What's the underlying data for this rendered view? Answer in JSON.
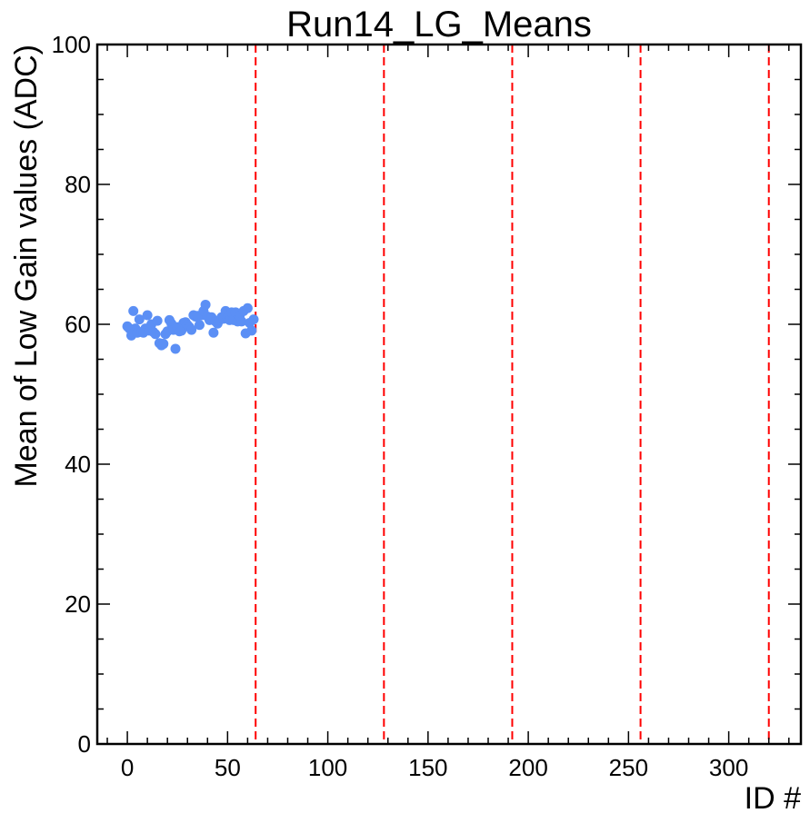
{
  "chart_data": {
    "type": "scatter",
    "title": "Run14_LG_Means",
    "xlabel": "ID #",
    "ylabel": "Mean of Low Gain values (ADC)",
    "xlim": [
      -15,
      336
    ],
    "ylim": [
      0,
      100
    ],
    "xticks": [
      0,
      50,
      100,
      150,
      200,
      250,
      300
    ],
    "yticks": [
      0,
      20,
      40,
      60,
      80,
      100
    ],
    "grid": false,
    "colors": {
      "points": "#5b8ff5",
      "vlines": "#ff0000",
      "axes": "#000000"
    },
    "vlines": [
      64,
      128,
      192,
      256,
      320
    ],
    "series": [
      {
        "x": [
          0,
          1,
          2,
          3,
          4,
          5,
          6,
          7,
          8,
          9,
          10,
          11,
          12,
          13,
          14,
          15,
          16,
          17,
          18,
          19,
          20,
          21,
          22,
          23,
          24,
          25,
          26,
          27,
          28,
          29,
          30,
          31,
          32,
          33,
          34,
          35,
          36,
          37,
          38,
          39,
          40,
          41,
          42,
          43,
          44,
          45,
          46,
          47,
          48,
          49,
          50,
          51,
          52,
          53,
          54,
          55,
          56,
          57,
          58,
          59,
          60,
          61,
          62,
          63
        ],
        "y": [
          59.7,
          59.4,
          58.4,
          61.9,
          59.4,
          58.8,
          60.7,
          58.9,
          58.8,
          59.4,
          61.3,
          59.1,
          60.0,
          58.9,
          58.6,
          60.5,
          57.3,
          57.0,
          57.2,
          58.6,
          59.0,
          60.6,
          60.1,
          59.2,
          56.5,
          59.6,
          59.0,
          59.1,
          60.2,
          60.3,
          59.9,
          59.6,
          59.2,
          61.3,
          61.1,
          61.2,
          59.9,
          61.3,
          61.9,
          62.8,
          61.1,
          60.6,
          61.0,
          58.8,
          60.4,
          60.1,
          60.6,
          61.0,
          60.8,
          61.9,
          61.0,
          60.6,
          61.7,
          60.6,
          61.7,
          60.4,
          61.2,
          60.4,
          61.9,
          58.7,
          62.3,
          60.2,
          59.1,
          60.7
        ]
      }
    ]
  }
}
